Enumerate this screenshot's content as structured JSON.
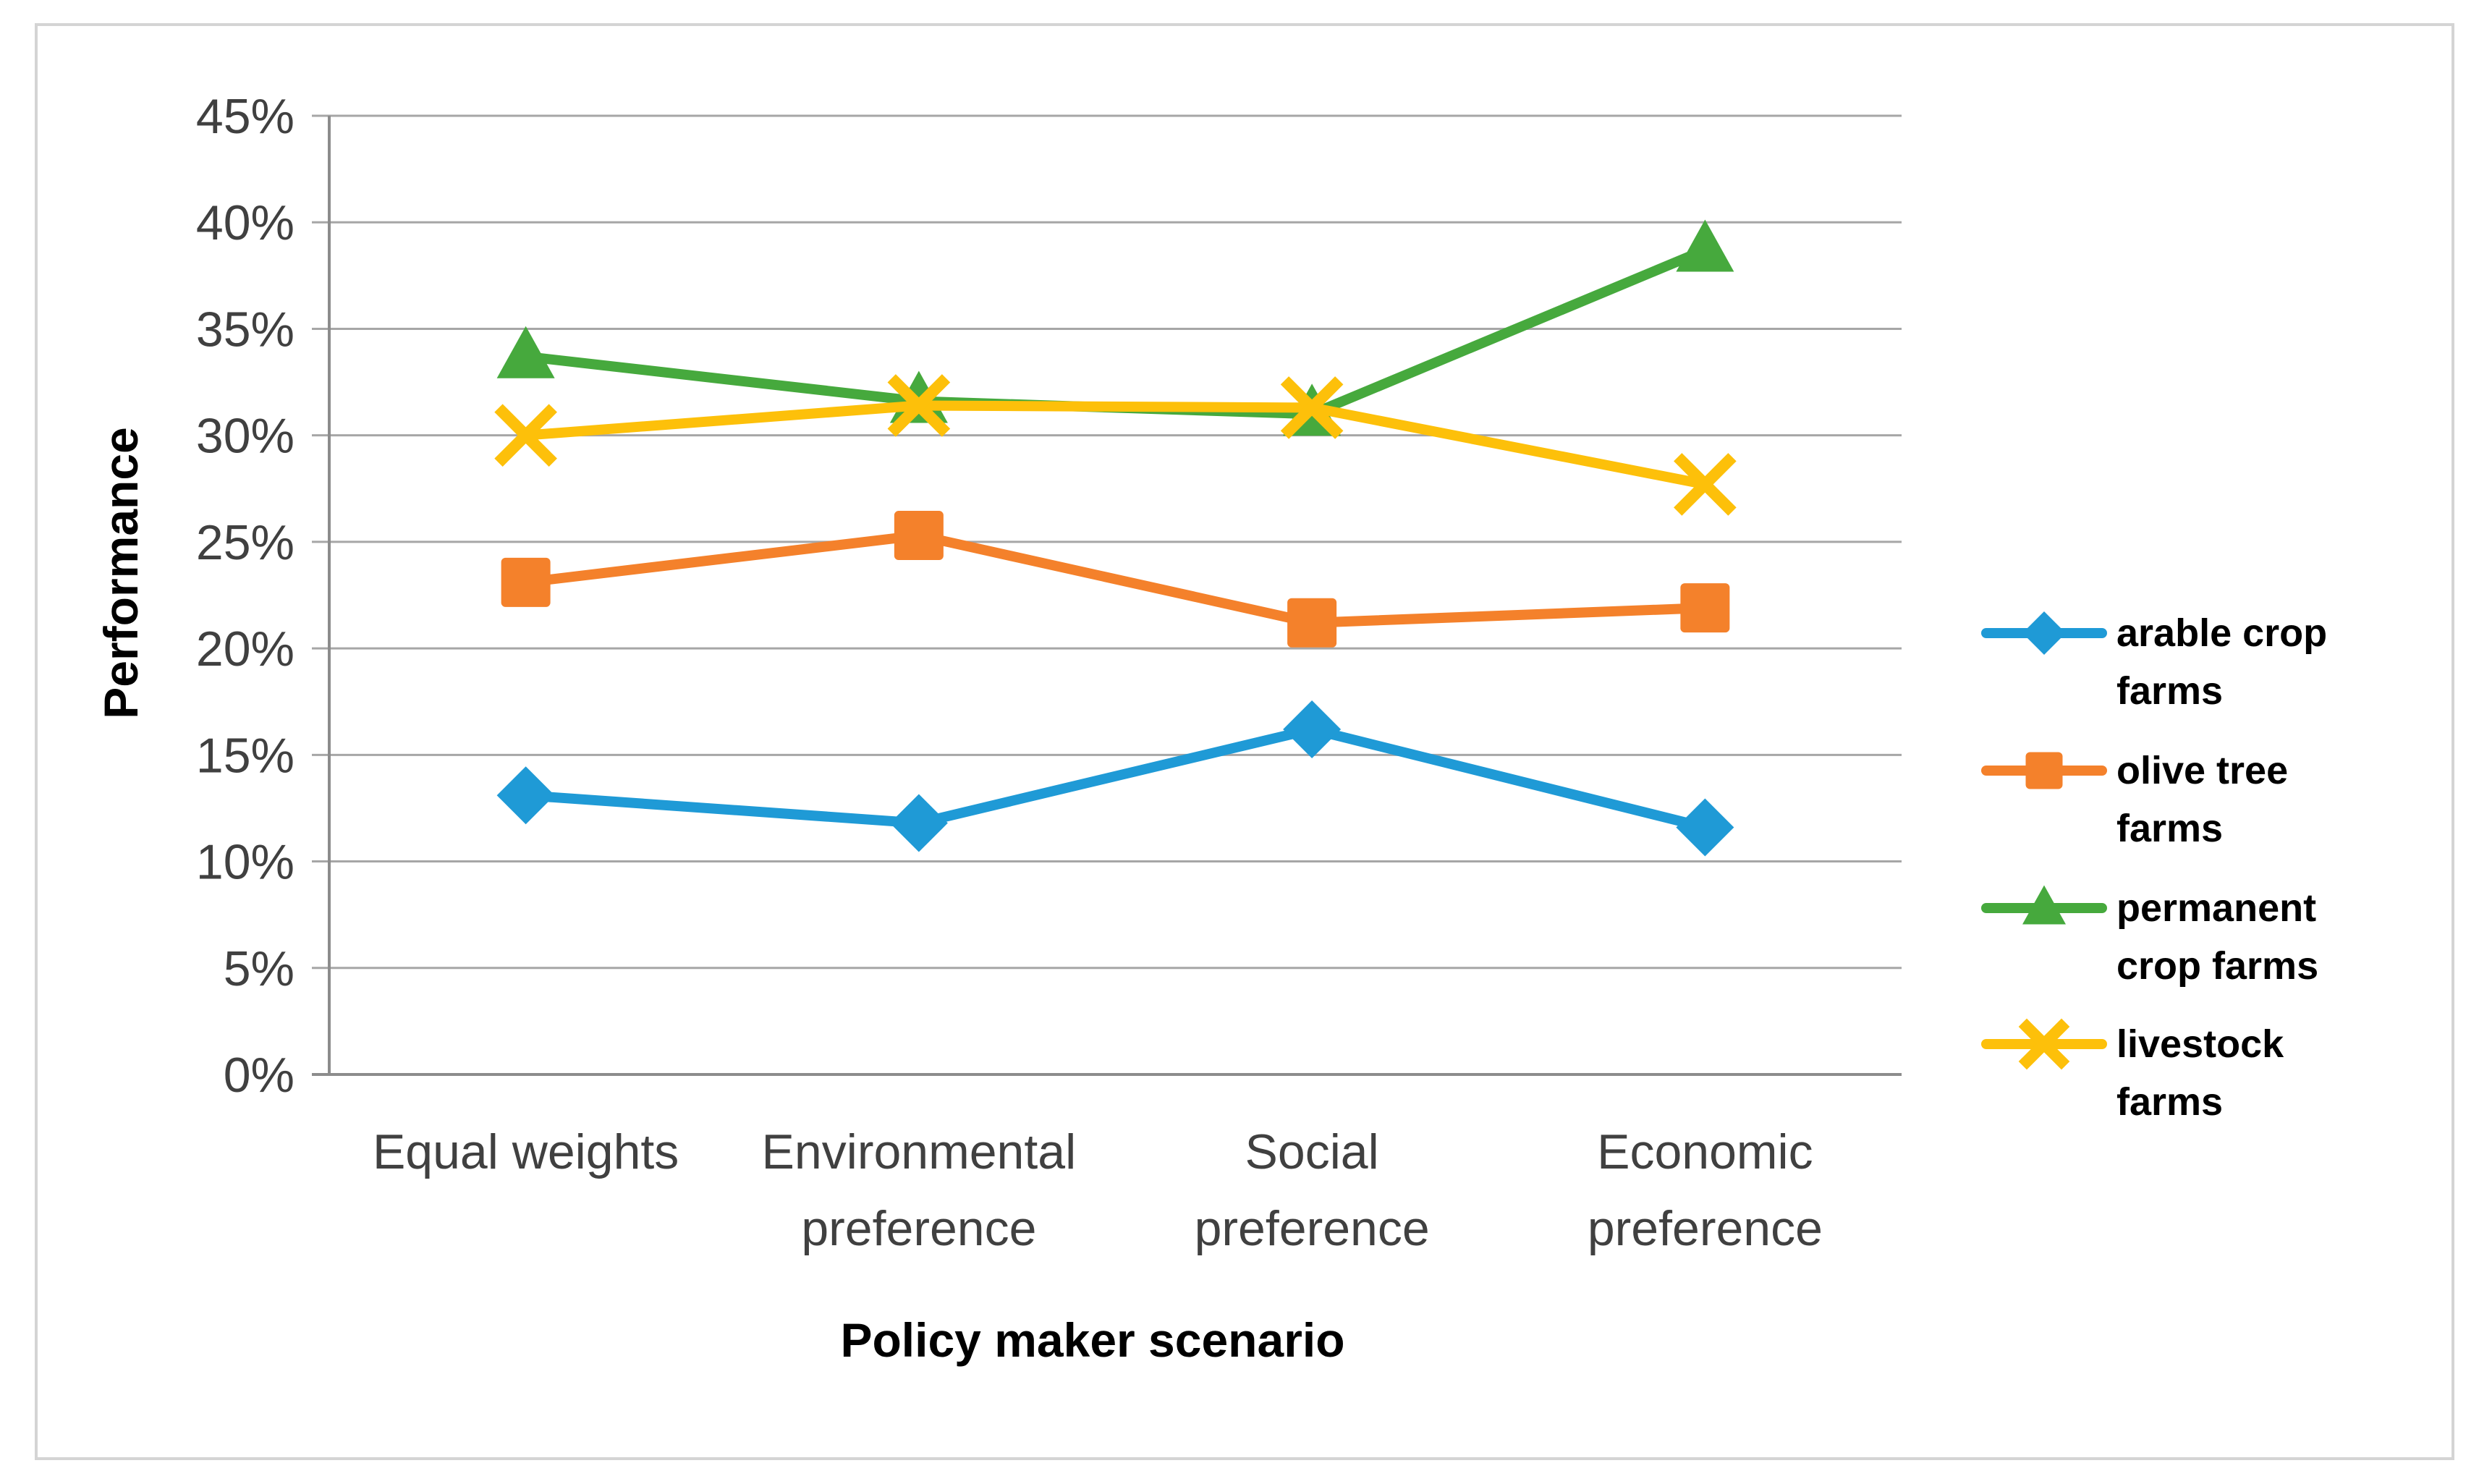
{
  "chart_data": {
    "type": "line",
    "title": "",
    "xlabel": "Policy maker scenario",
    "ylabel": "Performance",
    "ylim": [
      0,
      0.45
    ],
    "ytick_step": 0.05,
    "yticks": [
      "0%",
      "5%",
      "10%",
      "15%",
      "20%",
      "25%",
      "30%",
      "35%",
      "40%",
      "45%"
    ],
    "grid": true,
    "legend_position": "right",
    "categories": [
      [
        "Equal weights"
      ],
      [
        "Environmental",
        "preference"
      ],
      [
        "Social",
        "preference"
      ],
      [
        "Economic",
        "preference"
      ]
    ],
    "series": [
      {
        "name": "arable crop farms",
        "legend_lines": [
          "arable crop",
          "farms"
        ],
        "color": "#1f9ad6",
        "marker": "diamond",
        "values": [
          0.131,
          0.118,
          0.162,
          0.116
        ]
      },
      {
        "name": "olive tree farms",
        "legend_lines": [
          "olive tree",
          "farms"
        ],
        "color": "#f4812b",
        "marker": "square",
        "values": [
          0.231,
          0.253,
          0.212,
          0.219
        ]
      },
      {
        "name": "permanent crop farms",
        "legend_lines": [
          "permanent",
          "crop farms"
        ],
        "color": "#46a93d",
        "marker": "triangle",
        "values": [
          0.337,
          0.316,
          0.31,
          0.387
        ]
      },
      {
        "name": "livestock farms",
        "legend_lines": [
          "livestock",
          "farms"
        ],
        "color": "#fdc00a",
        "marker": "x",
        "values": [
          0.3,
          0.314,
          0.313,
          0.277
        ]
      }
    ]
  }
}
